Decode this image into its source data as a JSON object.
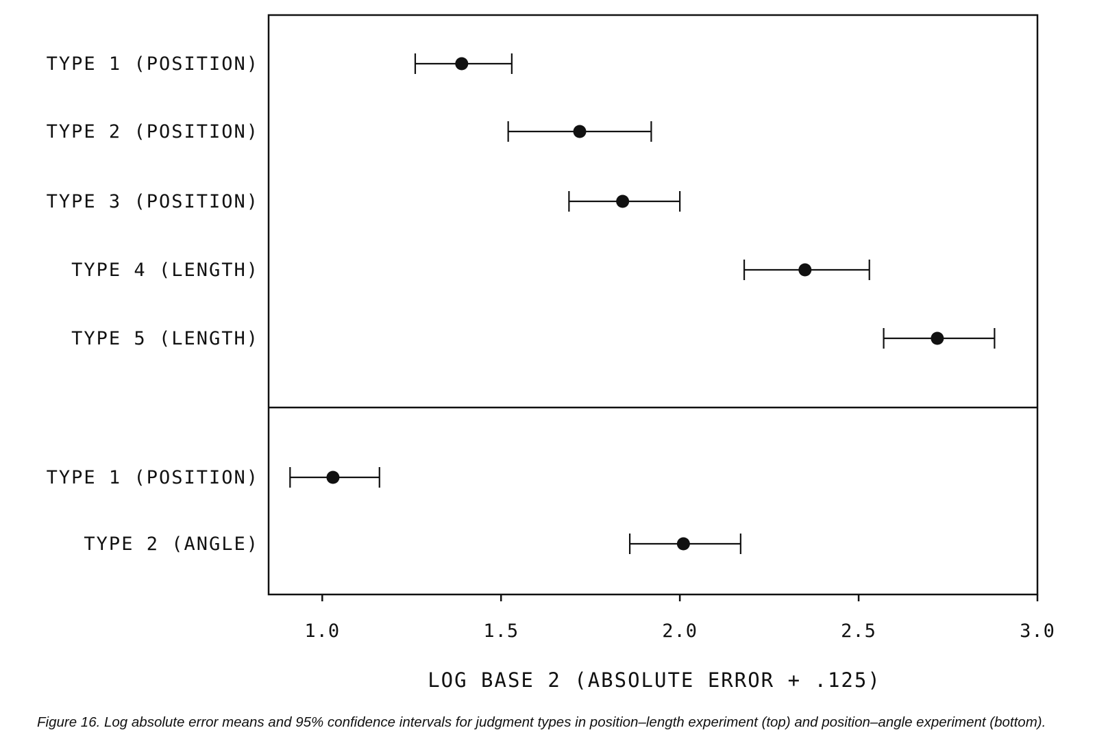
{
  "chart_data": {
    "type": "scatter",
    "xlabel": "LOG BASE 2 (ABSOLUTE ERROR + .125)",
    "xlim": [
      0.85,
      3.0
    ],
    "x_ticks": [
      1.0,
      1.5,
      2.0,
      2.5,
      3.0
    ],
    "x_tick_labels": [
      "1.0",
      "1.5",
      "2.0",
      "2.5",
      "3.0"
    ],
    "grid": false,
    "panels": [
      {
        "name": "top",
        "points": [
          {
            "label": "TYPE 1 (POSITION)",
            "mean": 1.39,
            "lower": 1.26,
            "upper": 1.53
          },
          {
            "label": "TYPE 2 (POSITION)",
            "mean": 1.72,
            "lower": 1.52,
            "upper": 1.92
          },
          {
            "label": "TYPE 3 (POSITION)",
            "mean": 1.84,
            "lower": 1.69,
            "upper": 2.0
          },
          {
            "label": "TYPE 4 (LENGTH)",
            "mean": 2.35,
            "lower": 2.18,
            "upper": 2.53
          },
          {
            "label": "TYPE 5 (LENGTH)",
            "mean": 2.72,
            "lower": 2.57,
            "upper": 2.88
          }
        ]
      },
      {
        "name": "bottom",
        "points": [
          {
            "label": "TYPE 1 (POSITION)",
            "mean": 1.03,
            "lower": 0.91,
            "upper": 1.16
          },
          {
            "label": "TYPE 2 (ANGLE)",
            "mean": 2.01,
            "lower": 1.86,
            "upper": 2.17
          }
        ]
      }
    ]
  },
  "caption": "Figure 16. Log absolute error means and 95% confidence intervals for judgment types in position–length experiment (top) and position–angle experiment (bottom)."
}
